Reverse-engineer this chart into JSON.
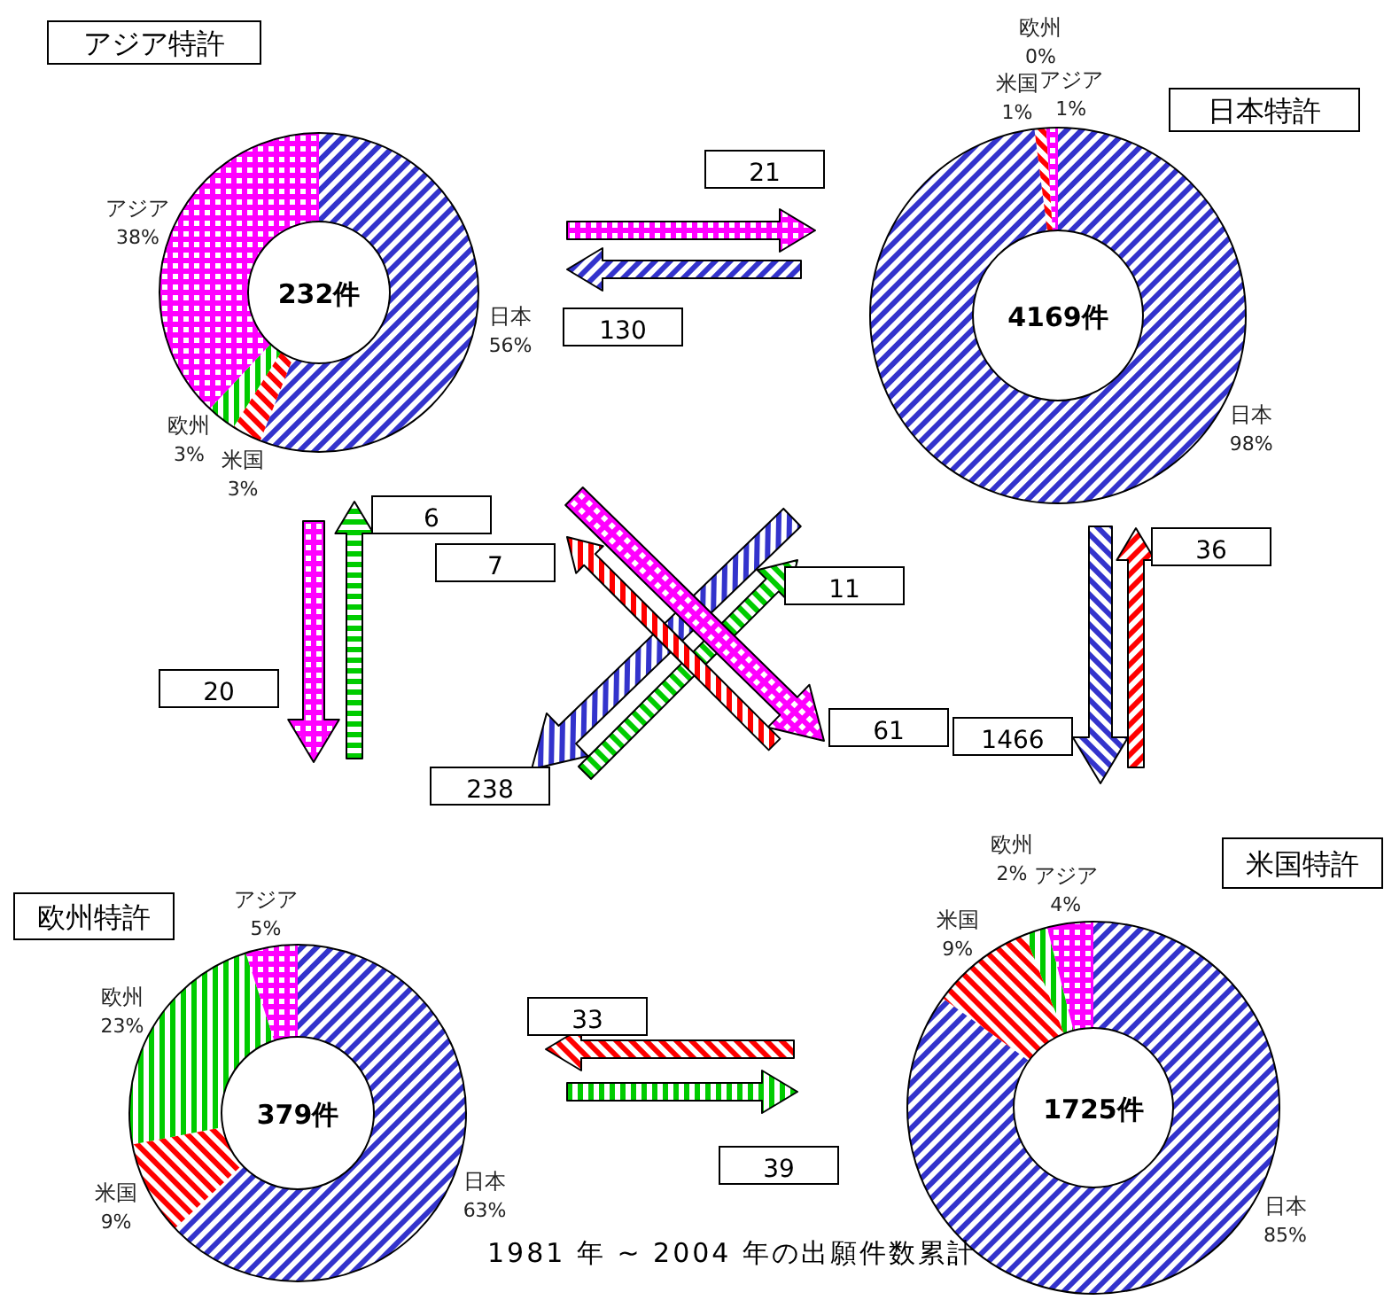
{
  "chart_data": [
    {
      "type": "donut",
      "title": "アジア特許",
      "categories": [
        "日本",
        "米国",
        "欧州",
        "アジア"
      ],
      "values": [
        56,
        3,
        3,
        38
      ],
      "value_labels": [
        "56%",
        "3%",
        "3%",
        "38%"
      ],
      "colors": [
        "#3333cc",
        "#ff0000",
        "#00cc00",
        "#ff00ff"
      ],
      "annotations": [
        "232件"
      ]
    },
    {
      "type": "donut",
      "title": "日本特許",
      "categories": [
        "日本",
        "米国",
        "欧州",
        "アジア"
      ],
      "values": [
        98,
        1,
        0,
        1
      ],
      "value_labels": [
        "98%",
        "1%",
        "0%",
        "1%"
      ],
      "colors": [
        "#3333cc",
        "#ff0000",
        "#00cc00",
        "#ff00ff"
      ],
      "annotations": [
        "4169件"
      ]
    },
    {
      "type": "donut",
      "title": "欧州特許",
      "categories": [
        "日本",
        "米国",
        "欧州",
        "アジア"
      ],
      "values": [
        63,
        9,
        23,
        5
      ],
      "value_labels": [
        "63%",
        "9%",
        "23%",
        "5%"
      ],
      "colors": [
        "#3333cc",
        "#ff0000",
        "#00cc00",
        "#ff00ff"
      ],
      "annotations": [
        "379件"
      ]
    },
    {
      "type": "donut",
      "title": "米国特許",
      "categories": [
        "日本",
        "米国",
        "欧州",
        "アジア"
      ],
      "values": [
        85,
        9,
        2,
        4
      ],
      "value_labels": [
        "85%",
        "9%",
        "2%",
        "4%"
      ],
      "colors": [
        "#3333cc",
        "#ff0000",
        "#00cc00",
        "#ff00ff"
      ],
      "annotations": [
        "1725件"
      ]
    },
    {
      "type": "other",
      "annotations": [
        "21",
        "130",
        "20",
        "6",
        "7",
        "238",
        "11",
        "61",
        "1466",
        "36",
        "33",
        "39",
        "1981 年 ~ 2004 年の出願件数累計"
      ]
    }
  ]
}
